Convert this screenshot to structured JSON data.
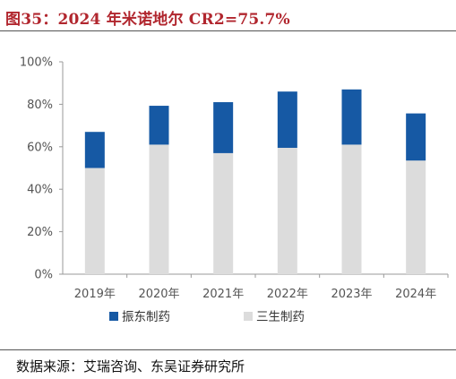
{
  "header": {
    "title": "图35：2024 年米诺地尔 CR2=75.7%"
  },
  "footer": {
    "source": "数据来源：艾瑞咨询、东吴证券研究所"
  },
  "chart_data": {
    "type": "bar",
    "stacked": true,
    "categories": [
      "2019年",
      "2020年",
      "2021年",
      "2022年",
      "2023年",
      "2024年"
    ],
    "series": [
      {
        "name": "三生制药",
        "color": "#dcdcdc",
        "values": [
          50.0,
          61.0,
          57.0,
          59.5,
          61.0,
          53.5
        ]
      },
      {
        "name": "振东制药",
        "color": "#1659a4",
        "values": [
          17.0,
          18.3,
          24.0,
          26.5,
          26.0,
          22.2
        ]
      }
    ],
    "y_ticks": [
      "0%",
      "20%",
      "40%",
      "60%",
      "80%",
      "100%"
    ],
    "ylim": [
      0,
      100
    ],
    "legend_order": [
      "振东制药",
      "三生制药"
    ],
    "legend_position": "bottom",
    "grid": false
  }
}
